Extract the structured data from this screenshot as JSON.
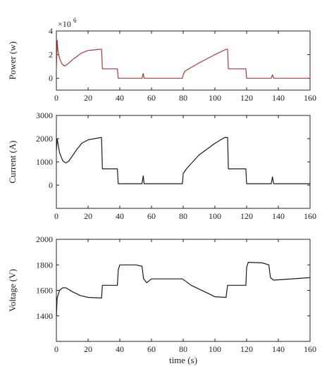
{
  "chart_data": [
    {
      "type": "line",
      "ylabel": "Power (w)",
      "xlabel": "",
      "multiplier": "×10",
      "multiplier_exp": "6",
      "xlim": [
        0,
        160
      ],
      "ylim": [
        -1,
        4
      ],
      "xticks": [
        0,
        20,
        40,
        60,
        80,
        100,
        120,
        140,
        160
      ],
      "yticks": [
        0,
        2,
        4
      ],
      "color": "#a33a3a",
      "series": [
        {
          "x": [
            0,
            0.5,
            1,
            2,
            3,
            4,
            5,
            6,
            8,
            10,
            13,
            16,
            20,
            24,
            27,
            28.5,
            29,
            38.5,
            39,
            54,
            54.8,
            55.3,
            56,
            79.5,
            80,
            81,
            90,
            100,
            107,
            108,
            108.5,
            119.5,
            120,
            135.5,
            136.3,
            137,
            160
          ],
          "y": [
            0.6,
            3.2,
            2.3,
            1.7,
            1.35,
            1.15,
            1.05,
            1.1,
            1.3,
            1.55,
            1.85,
            2.15,
            2.35,
            2.4,
            2.45,
            2.45,
            0.8,
            0.8,
            0,
            0,
            0.4,
            0,
            0,
            0,
            0.3,
            0.6,
            1.3,
            2.0,
            2.45,
            2.45,
            0.8,
            0.8,
            0,
            0,
            0.3,
            0,
            0
          ]
        }
      ]
    },
    {
      "type": "line",
      "ylabel": "Current (A)",
      "xlabel": "",
      "xlim": [
        0,
        160
      ],
      "ylim": [
        -1000,
        3000
      ],
      "xticks": [
        0,
        20,
        40,
        60,
        80,
        100,
        120,
        140,
        160
      ],
      "yticks": [
        0,
        1000,
        2000,
        3000
      ],
      "color": "#1a1a1a",
      "series": [
        {
          "x": [
            0,
            0.5,
            2,
            4,
            6,
            8,
            10,
            13,
            16,
            20,
            24,
            28,
            28.5,
            29,
            38.5,
            39,
            54,
            54.8,
            55.3,
            56,
            79.5,
            80,
            82,
            90,
            100,
            106,
            108,
            108.5,
            119.5,
            120,
            135.5,
            136.3,
            137,
            160
          ],
          "y": [
            1500,
            2000,
            1400,
            1050,
            950,
            1050,
            1250,
            1550,
            1800,
            1950,
            2000,
            2050,
            2050,
            700,
            700,
            60,
            60,
            400,
            60,
            60,
            60,
            500,
            700,
            1300,
            1800,
            2050,
            2050,
            700,
            700,
            60,
            60,
            350,
            60,
            60
          ]
        }
      ]
    },
    {
      "type": "line",
      "ylabel": "Voltage (V)",
      "xlabel": "time (s)",
      "xlim": [
        0,
        160
      ],
      "ylim": [
        1200,
        2000
      ],
      "xticks": [
        0,
        20,
        40,
        60,
        80,
        100,
        120,
        140,
        160
      ],
      "yticks": [
        1400,
        1600,
        1800,
        2000
      ],
      "color": "#1a1a1a",
      "series": [
        {
          "x": [
            0,
            0.5,
            2,
            4,
            6,
            10,
            15,
            20,
            28.5,
            29,
            38.5,
            39,
            40,
            50,
            54,
            55,
            57,
            60,
            79.5,
            85,
            95,
            100,
            107,
            108,
            119.5,
            120,
            121,
            130,
            134,
            135,
            137,
            160
          ],
          "y": [
            1400,
            1540,
            1600,
            1620,
            1620,
            1590,
            1560,
            1545,
            1540,
            1640,
            1640,
            1760,
            1800,
            1800,
            1790,
            1690,
            1660,
            1690,
            1690,
            1640,
            1580,
            1550,
            1545,
            1640,
            1640,
            1780,
            1820,
            1815,
            1800,
            1700,
            1680,
            1700
          ]
        }
      ]
    }
  ]
}
